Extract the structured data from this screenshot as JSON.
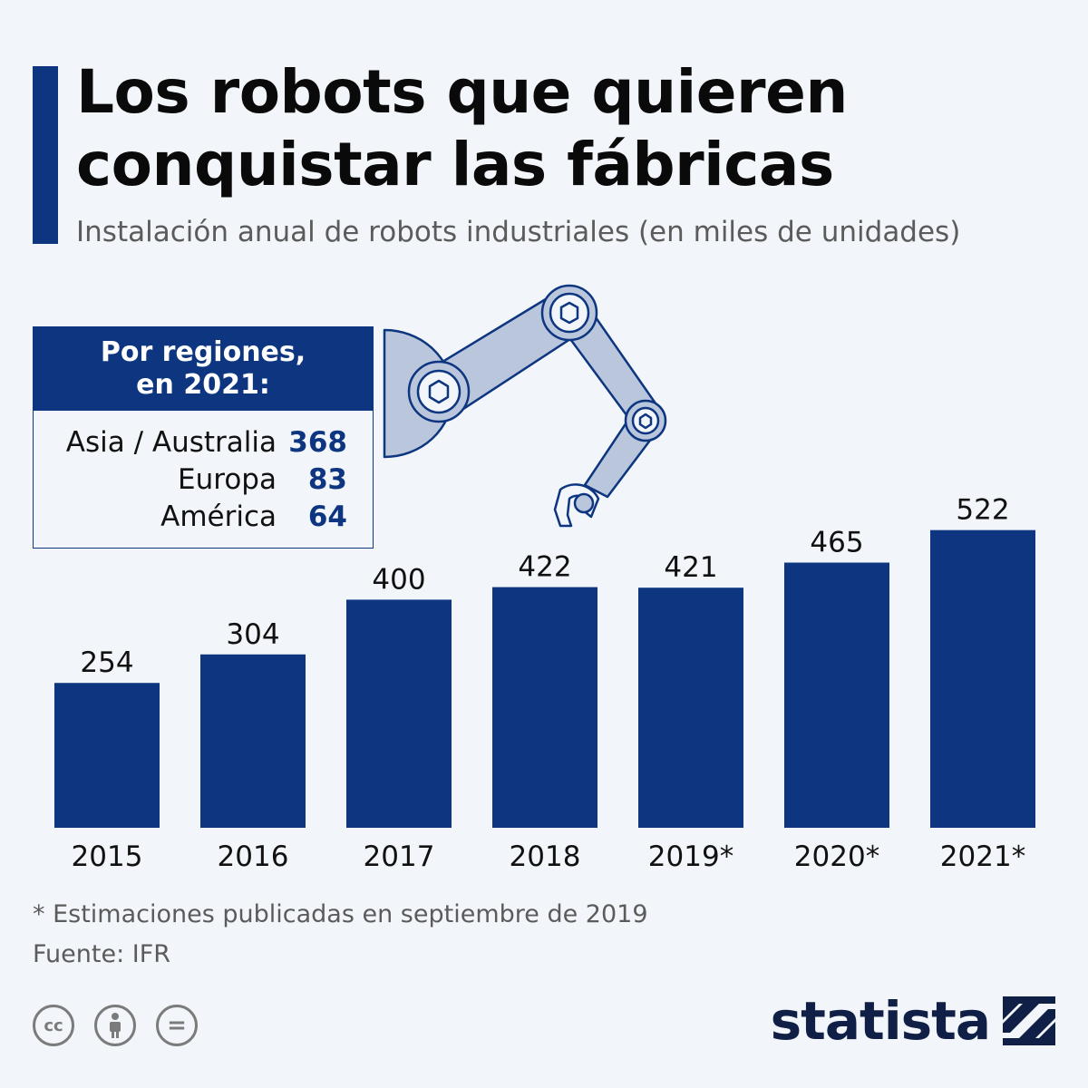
{
  "header": {
    "title": "Los robots que quieren conquistar las fábricas",
    "subtitle": "Instalación anual de robots industriales (en miles de unidades)"
  },
  "regions": {
    "heading": "Por regiones, en 2021:",
    "items": [
      {
        "name": "Asia / Australia",
        "value": "368"
      },
      {
        "name": "Europa",
        "value": "83"
      },
      {
        "name": "América",
        "value": "64"
      }
    ]
  },
  "chart_data": {
    "type": "bar",
    "title": "Los robots que quieren conquistar las fábricas",
    "subtitle": "Instalación anual de robots industriales (en miles de unidades)",
    "categories": [
      "2015",
      "2016",
      "2017",
      "2018",
      "2019*",
      "2020*",
      "2021*"
    ],
    "values": [
      254,
      304,
      400,
      422,
      421,
      465,
      522
    ],
    "ylim": [
      0,
      522
    ],
    "grid": false,
    "bar_color": "#0d3580"
  },
  "footer": {
    "note": "* Estimaciones publicadas en septiembre de 2019",
    "source": "Fuente: IFR",
    "license_icons": [
      "cc-icon",
      "attribution-icon",
      "no-derivatives-icon"
    ],
    "license_labels": [
      "cc",
      "",
      "="
    ],
    "brand": "statista"
  },
  "colors": {
    "accent": "#0d3580",
    "background": "#f2f6fa",
    "robot_fill": "#b9c6dc"
  }
}
